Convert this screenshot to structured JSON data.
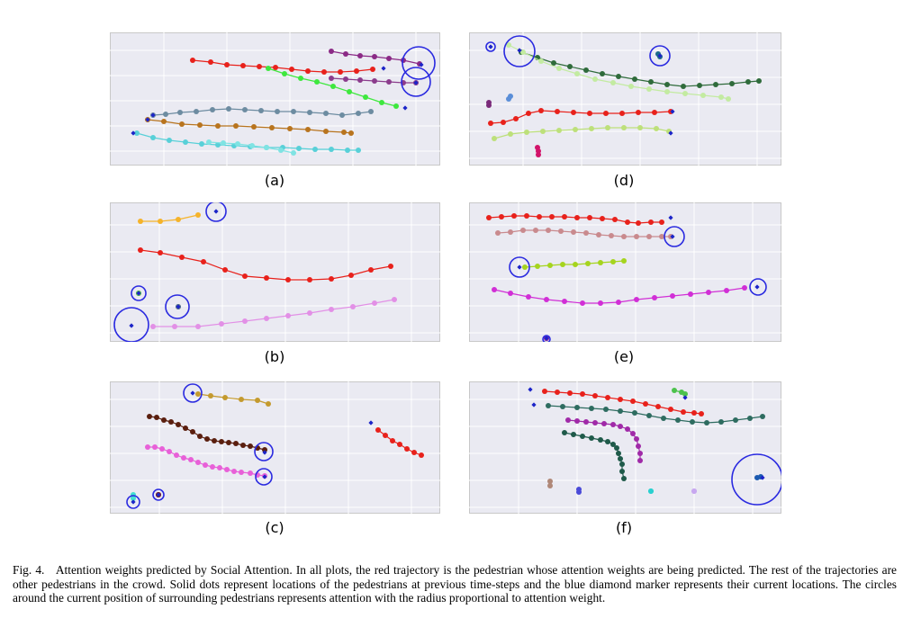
{
  "panels": [
    {
      "id": "a",
      "label": "(a)"
    },
    {
      "id": "b",
      "label": "(b)"
    },
    {
      "id": "c",
      "label": "(c)"
    },
    {
      "id": "d",
      "label": "(d)"
    },
    {
      "id": "e",
      "label": "(e)"
    },
    {
      "id": "f",
      "label": "(f)"
    }
  ],
  "caption": {
    "prefix": "Fig. 4.",
    "text": "Attention weights predicted by Social Attention. In all plots, the red trajectory is the pedestrian whose attention weights are being predicted. The rest of the trajectories are other pedestrians in the crowd. Solid dots represent locations of the pedestrians at previous time-steps and the blue diamond marker represents their current locations. The circles around the current position of surrounding pedestrians represents attention with the radius proportional to attention weight."
  },
  "colors": {
    "predicted_pedestrian": "#e8211b",
    "current_location_marker": "#1c24c8",
    "attention_circle": "#2a2ae0",
    "plot_background": "#eaeaf2"
  }
}
